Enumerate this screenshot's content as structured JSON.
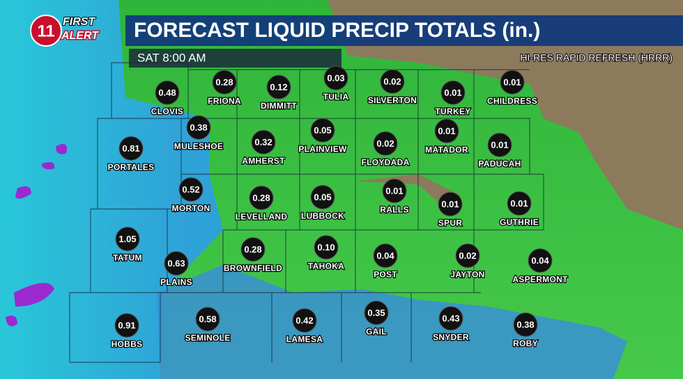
{
  "logo": {
    "number": "11",
    "line1": "FIRST",
    "line2": "ALERT"
  },
  "header": {
    "title": "FORECAST LIQUID PRECIP TOTALS (in.)",
    "time": "SAT 8:00 AM",
    "model": "HI-RES RAPID REFRESH (HRRR)"
  },
  "cities": [
    {
      "name": "CLOVIS",
      "value": "0.48"
    },
    {
      "name": "FRIONA",
      "value": "0.28"
    },
    {
      "name": "DIMMITT",
      "value": "0.12"
    },
    {
      "name": "TULIA",
      "value": "0.03"
    },
    {
      "name": "SILVERTON",
      "value": "0.02"
    },
    {
      "name": "TURKEY",
      "value": "0.01"
    },
    {
      "name": "CHILDRESS",
      "value": "0.01"
    },
    {
      "name": "MULESHOE",
      "value": "0.38"
    },
    {
      "name": "PORTALES",
      "value": "0.81"
    },
    {
      "name": "AMHERST",
      "value": "0.32"
    },
    {
      "name": "PLAINVIEW",
      "value": "0.05"
    },
    {
      "name": "FLOYDADA",
      "value": "0.02"
    },
    {
      "name": "MATADOR",
      "value": "0.01"
    },
    {
      "name": "PADUCAH",
      "value": "0.01"
    },
    {
      "name": "MORTON",
      "value": "0.52"
    },
    {
      "name": "LEVELLAND",
      "value": "0.28"
    },
    {
      "name": "LUBBOCK",
      "value": "0.05"
    },
    {
      "name": "RALLS",
      "value": "0.01"
    },
    {
      "name": "SPUR",
      "value": "0.01"
    },
    {
      "name": "GUTHRIE",
      "value": "0.01"
    },
    {
      "name": "TATUM",
      "value": "1.05"
    },
    {
      "name": "PLAINS",
      "value": "0.63"
    },
    {
      "name": "BROWNFIELD",
      "value": "0.28"
    },
    {
      "name": "TAHOKA",
      "value": "0.10"
    },
    {
      "name": "POST",
      "value": "0.04"
    },
    {
      "name": "JAYTON",
      "value": "0.02"
    },
    {
      "name": "ASPERMONT",
      "value": "0.04"
    },
    {
      "name": "HOBBS",
      "value": "0.91"
    },
    {
      "name": "SEMINOLE",
      "value": "0.58"
    },
    {
      "name": "LAMESA",
      "value": "0.42"
    },
    {
      "name": "GAIL",
      "value": "0.35"
    },
    {
      "name": "SNYDER",
      "value": "0.43"
    },
    {
      "name": "ROBY",
      "value": "0.38"
    }
  ]
}
